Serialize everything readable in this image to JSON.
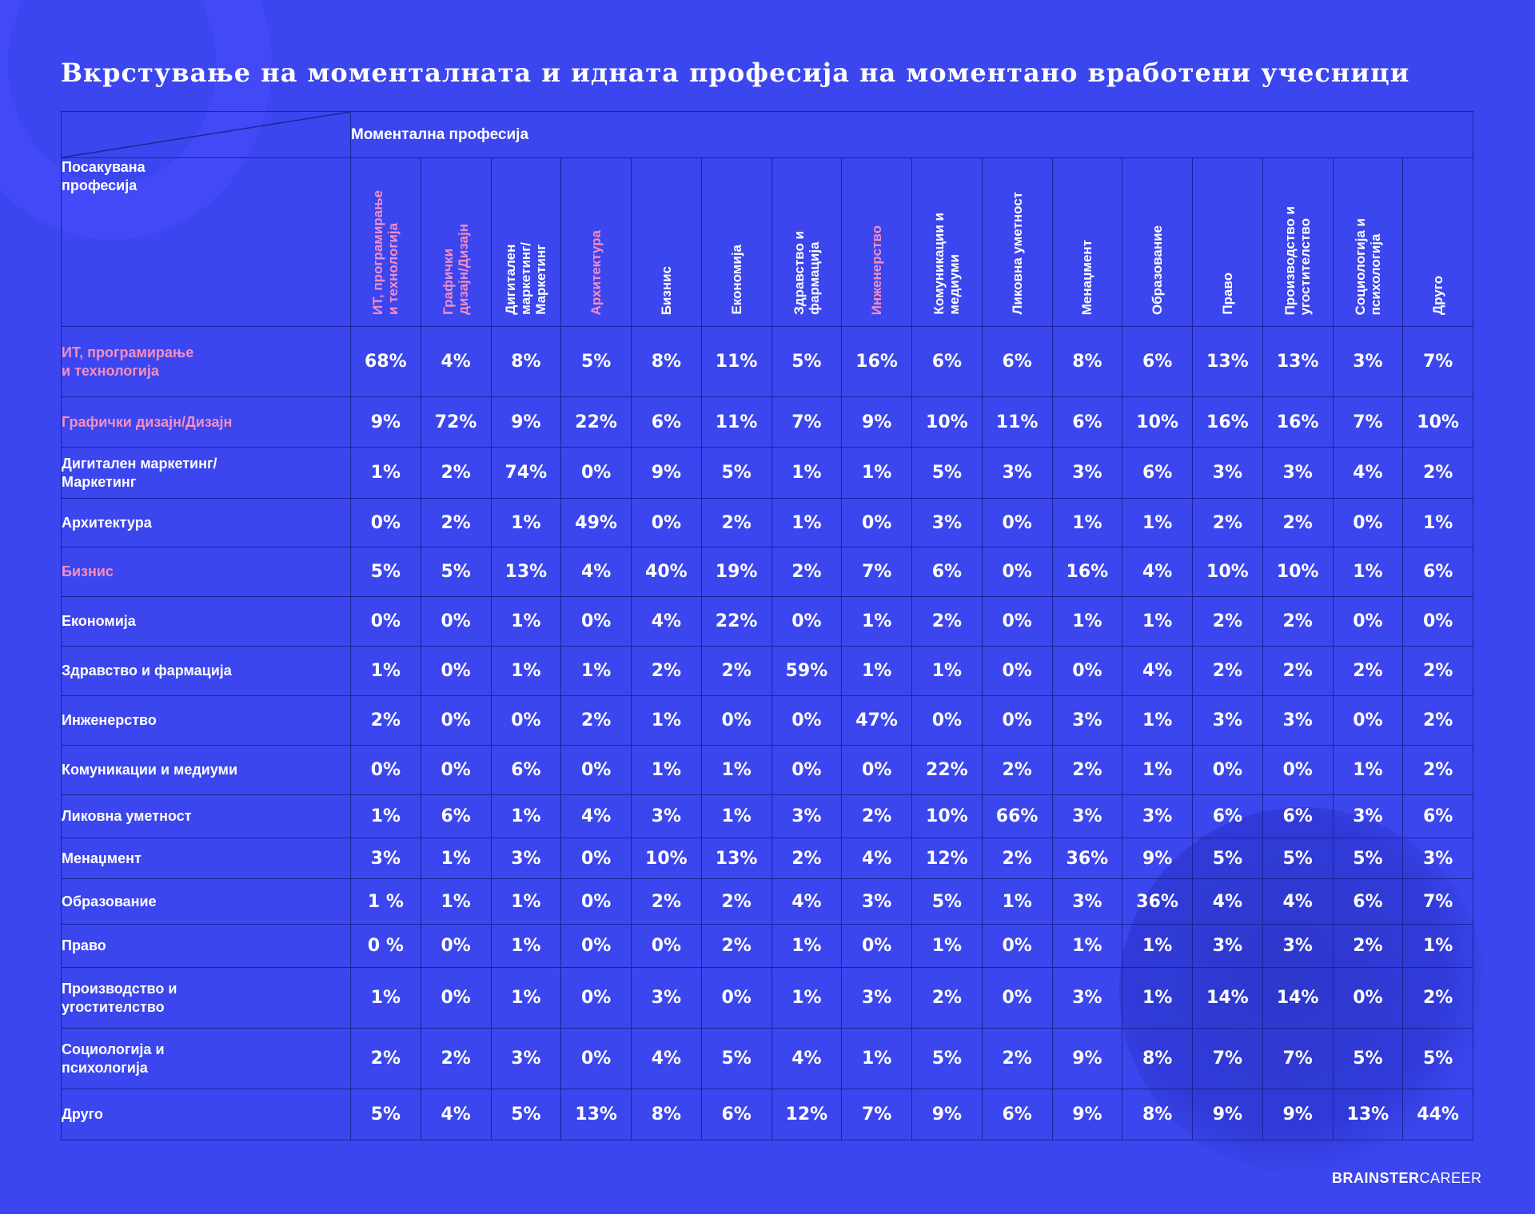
{
  "title": "Вкрстување на моменталната и идната професија на моментано вработени учесници",
  "logo": {
    "bold": "BRAINSTER",
    "light": "CAREER"
  },
  "chart_data": {
    "type": "table",
    "column_axis_label": "Моментална професија",
    "row_axis_label": "Посакувана\nпрофесија",
    "columns": [
      {
        "label": "ИТ, програмирање\nи технологија",
        "highlight": true
      },
      {
        "label": "Графички\nдизајн/Дизајн",
        "highlight": true
      },
      {
        "label": "Дигитален\nмаркетинг/\nМаркетинг",
        "highlight": false
      },
      {
        "label": "Архитектура",
        "highlight": true
      },
      {
        "label": "Бизнис",
        "highlight": false
      },
      {
        "label": "Економија",
        "highlight": false
      },
      {
        "label": "Здравство и\nфармација",
        "highlight": false
      },
      {
        "label": "Инженерство",
        "highlight": true
      },
      {
        "label": "Комуникации и\nмедиуми",
        "highlight": false
      },
      {
        "label": "Ликовна уметност",
        "highlight": false
      },
      {
        "label": "Менаџмент",
        "highlight": false
      },
      {
        "label": "Образование",
        "highlight": false
      },
      {
        "label": "Право",
        "highlight": false
      },
      {
        "label": "Производство и\nугостителство",
        "highlight": false
      },
      {
        "label": "Социологија и\nпсихологија",
        "highlight": false
      },
      {
        "label": "Друго",
        "highlight": false
      }
    ],
    "rows": [
      {
        "label": "ИТ, програмирање\nи технологија",
        "highlight": true,
        "values": [
          "68%",
          "4%",
          "8%",
          "5%",
          "8%",
          "11%",
          "5%",
          "16%",
          "6%",
          "6%",
          "8%",
          "6%",
          "13%",
          "13%",
          "3%",
          "7%"
        ]
      },
      {
        "label": "Графички дизајн/Дизајн",
        "highlight": true,
        "values": [
          "9%",
          "72%",
          "9%",
          "22%",
          "6%",
          "11%",
          "7%",
          "9%",
          "10%",
          "11%",
          "6%",
          "10%",
          "16%",
          "16%",
          "7%",
          "10%"
        ]
      },
      {
        "label": "Дигитален маркетинг/\nМаркетинг",
        "highlight": false,
        "values": [
          "1%",
          "2%",
          "74%",
          "0%",
          "9%",
          "5%",
          "1%",
          "1%",
          "5%",
          "3%",
          "3%",
          "6%",
          "3%",
          "3%",
          "4%",
          "2%"
        ]
      },
      {
        "label": "Архитектура",
        "highlight": false,
        "values": [
          "0%",
          "2%",
          "1%",
          "49%",
          "0%",
          "2%",
          "1%",
          "0%",
          "3%",
          "0%",
          "1%",
          "1%",
          "2%",
          "2%",
          "0%",
          "1%"
        ]
      },
      {
        "label": "Бизнис",
        "highlight": true,
        "values": [
          "5%",
          "5%",
          "13%",
          "4%",
          "40%",
          "19%",
          "2%",
          "7%",
          "6%",
          "0%",
          "16%",
          "4%",
          "10%",
          "10%",
          "1%",
          "6%"
        ]
      },
      {
        "label": "Економија",
        "highlight": false,
        "values": [
          "0%",
          "0%",
          "1%",
          "0%",
          "4%",
          "22%",
          "0%",
          "1%",
          "2%",
          "0%",
          "1%",
          "1%",
          "2%",
          "2%",
          "0%",
          "0%"
        ]
      },
      {
        "label": "Здравство и фармација",
        "highlight": false,
        "values": [
          "1%",
          "0%",
          "1%",
          "1%",
          "2%",
          "2%",
          "59%",
          "1%",
          "1%",
          "0%",
          "0%",
          "4%",
          "2%",
          "2%",
          "2%",
          "2%"
        ]
      },
      {
        "label": "Инженерство",
        "highlight": false,
        "values": [
          "2%",
          "0%",
          "0%",
          "2%",
          "1%",
          "0%",
          "0%",
          "47%",
          "0%",
          "0%",
          "3%",
          "1%",
          "3%",
          "3%",
          "0%",
          "2%"
        ]
      },
      {
        "label": "Комуникации и медиуми",
        "highlight": false,
        "values": [
          "0%",
          "0%",
          "6%",
          "0%",
          "1%",
          "1%",
          "0%",
          "0%",
          "22%",
          "2%",
          "2%",
          "1%",
          "0%",
          "0%",
          "1%",
          "2%"
        ]
      },
      {
        "label": "Ликовна уметност",
        "highlight": false,
        "values": [
          "1%",
          "6%",
          "1%",
          "4%",
          "3%",
          "1%",
          "3%",
          "2%",
          "10%",
          "66%",
          "3%",
          "3%",
          "6%",
          "6%",
          "3%",
          "6%"
        ]
      },
      {
        "label": "Менаџмент",
        "highlight": false,
        "values": [
          "3%",
          "1%",
          "3%",
          "0%",
          "10%",
          "13%",
          "2%",
          "4%",
          "12%",
          "2%",
          "36%",
          "9%",
          "5%",
          "5%",
          "5%",
          "3%"
        ]
      },
      {
        "label": "Образование",
        "highlight": false,
        "values": [
          "1 %",
          "1%",
          "1%",
          "0%",
          "2%",
          "2%",
          "4%",
          "3%",
          "5%",
          "1%",
          "3%",
          "36%",
          "4%",
          "4%",
          "6%",
          "7%"
        ]
      },
      {
        "label": "Право",
        "highlight": false,
        "values": [
          "0 %",
          "0%",
          "1%",
          "0%",
          "0%",
          "2%",
          "1%",
          "0%",
          "1%",
          "0%",
          "1%",
          "1%",
          "3%",
          "3%",
          "2%",
          "1%"
        ]
      },
      {
        "label": "Производство и\nугостителство",
        "highlight": false,
        "values": [
          "1%",
          "0%",
          "1%",
          "0%",
          "3%",
          "0%",
          "1%",
          "3%",
          "2%",
          "0%",
          "3%",
          "1%",
          "14%",
          "14%",
          "0%",
          "2%"
        ]
      },
      {
        "label": "Социологија и\nпсихологија",
        "highlight": false,
        "values": [
          "2%",
          "2%",
          "3%",
          "0%",
          "4%",
          "5%",
          "4%",
          "1%",
          "5%",
          "2%",
          "9%",
          "8%",
          "7%",
          "7%",
          "5%",
          "5%"
        ]
      },
      {
        "label": "Друго",
        "highlight": false,
        "values": [
          "5%",
          "4%",
          "5%",
          "13%",
          "8%",
          "6%",
          "12%",
          "7%",
          "9%",
          "6%",
          "9%",
          "8%",
          "9%",
          "9%",
          "13%",
          "44%"
        ]
      }
    ]
  }
}
